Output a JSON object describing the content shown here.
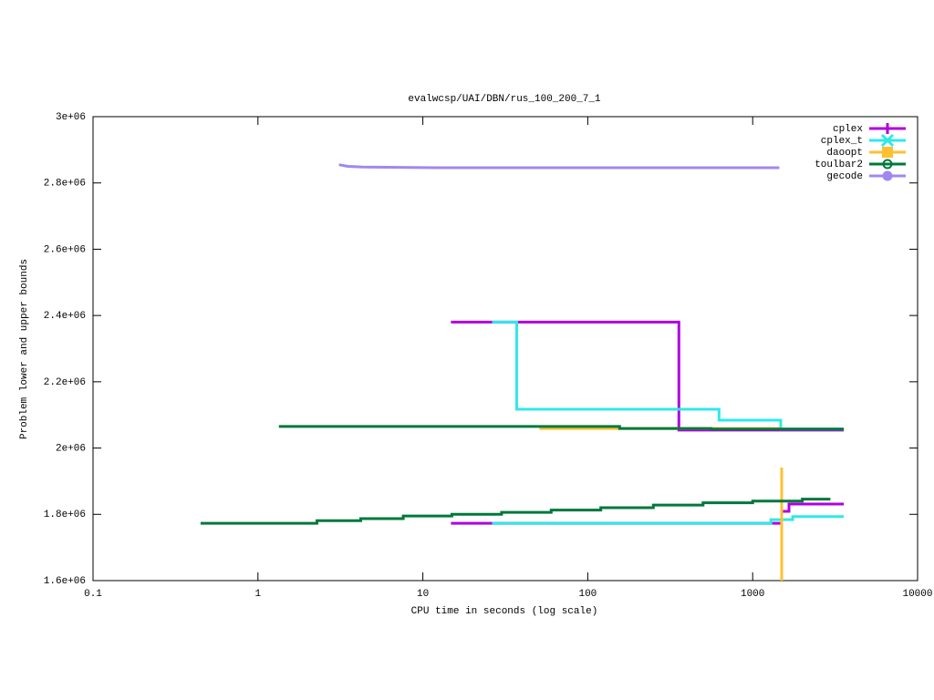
{
  "chart_data": {
    "type": "line",
    "title": "evalwcsp/UAI/DBN/rus_100_200_7_1",
    "xlabel": "CPU time in seconds (log scale)",
    "ylabel": "Problem lower and upper bounds",
    "xscale": "log",
    "grid": false,
    "legend": "top-right",
    "xlim": [
      0.1,
      10000
    ],
    "xticks": [
      0.1,
      1,
      10,
      100,
      1000,
      10000
    ],
    "ylim": [
      1600000,
      3000000
    ],
    "yticks": [
      {
        "value": 1600000,
        "label": "1.6e+06"
      },
      {
        "value": 1800000,
        "label": "1.8e+06"
      },
      {
        "value": 2000000,
        "label": "2e+06"
      },
      {
        "value": 2200000,
        "label": "2.2e+06"
      },
      {
        "value": 2400000,
        "label": "2.4e+06"
      },
      {
        "value": 2600000,
        "label": "2.6e+06"
      },
      {
        "value": 2800000,
        "label": "2.8e+06"
      },
      {
        "value": 3000000,
        "label": "3e+06"
      }
    ],
    "series": [
      {
        "name": "cplex",
        "color": "#b000e0",
        "marker": "plus",
        "x": [
          14.8,
          357,
          357,
          3570,
          null,
          14.8,
          1500,
          1500,
          1660,
          1660,
          3570
        ],
        "values": [
          2380000,
          2380000,
          2054000,
          2054000,
          null,
          1773000,
          1773000,
          1809000,
          1809000,
          1831000,
          1831000
        ]
      },
      {
        "name": "cplex_t",
        "color": "#30e8e8",
        "marker": "cross",
        "x": [
          26.3,
          37.1,
          37.1,
          625,
          625,
          1480,
          1480,
          3570,
          null,
          26.3,
          1290,
          1290,
          1750,
          1750,
          3570
        ],
        "values": [
          2380000,
          2380000,
          2117000,
          2117000,
          2084000,
          2084000,
          2057000,
          2057000,
          null,
          1773000,
          1773000,
          1784000,
          1784000,
          1793000,
          1793000
        ]
      },
      {
        "name": "daoopt",
        "color": "#ffc030",
        "marker": "square",
        "x": [
          51,
          1500,
          null,
          1500,
          1500
        ],
        "values": [
          2059000,
          2059000,
          null,
          1941000,
          1600000
        ]
      },
      {
        "name": "toulbar2",
        "color": "#00783c",
        "marker": "circle-dot",
        "x": [
          1.34,
          156,
          156,
          560,
          560,
          3570,
          null,
          0.449,
          2.28,
          2.28,
          4.2,
          4.2,
          7.6,
          7.6,
          15,
          15,
          30,
          30,
          60,
          60,
          120,
          120,
          250,
          250,
          500,
          500,
          1000,
          1000,
          2000,
          2000,
          2960
        ],
        "values": [
          2065000,
          2065000,
          2059000,
          2059000,
          2057000,
          2057000,
          null,
          1773000,
          1773000,
          1781000,
          1781000,
          1787000,
          1787000,
          1795000,
          1795000,
          1800000,
          1800000,
          1806000,
          1806000,
          1813000,
          1813000,
          1820000,
          1820000,
          1828000,
          1828000,
          1835000,
          1835000,
          1840000,
          1840000,
          1846000,
          1846000
        ]
      },
      {
        "name": "gecode",
        "color": "#a088f0",
        "marker": "circle",
        "x": [
          3.1,
          3.5,
          4.3,
          12,
          1450
        ],
        "values": [
          2855000,
          2850000,
          2848000,
          2846000,
          2846000
        ]
      }
    ]
  }
}
